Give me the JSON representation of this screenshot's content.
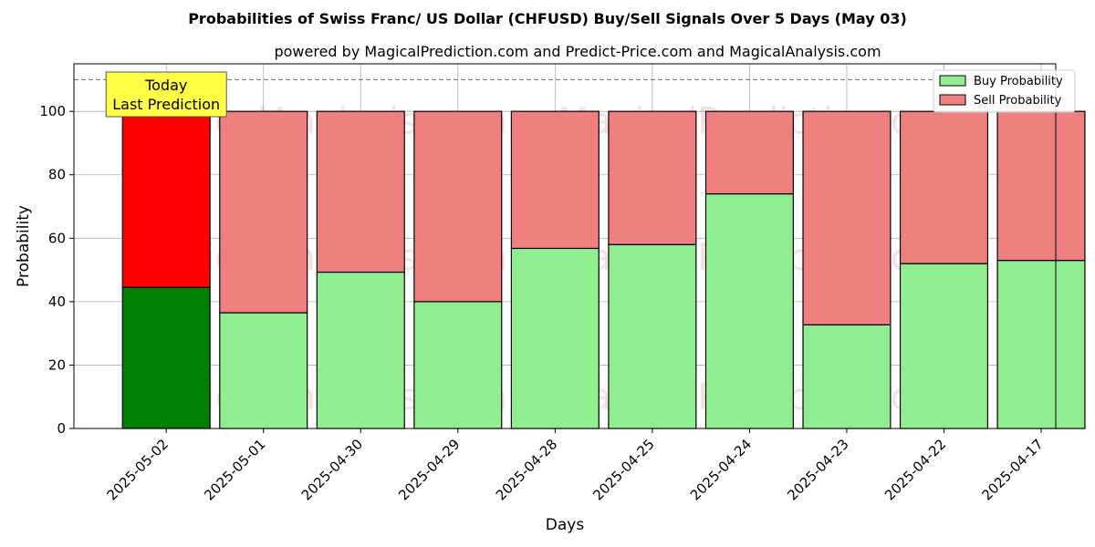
{
  "chart_data": {
    "type": "bar",
    "stacked": true,
    "title": "Probabilities of Swiss Franc/ US Dollar (CHFUSD) Buy/Sell Signals Over 5 Days (May 03)",
    "subtitle": "powered by MagicalPrediction.com and Predict-Price.com and MagicalAnalysis.com",
    "xlabel": "Days",
    "ylabel": "Probability",
    "ylim": [
      0,
      115
    ],
    "yticks": [
      0,
      20,
      40,
      60,
      80,
      100
    ],
    "reference_line": 110,
    "grid": true,
    "legend_position": "top-right",
    "categories": [
      "2025-05-02",
      "2025-05-01",
      "2025-04-30",
      "2025-04-29",
      "2025-04-28",
      "2025-04-25",
      "2025-04-24",
      "2025-04-23",
      "2025-04-22",
      "2025-04-17"
    ],
    "series": [
      {
        "name": "Buy Probability",
        "color": "#90ee90",
        "highlight_color": "#008000",
        "values": [
          44.5,
          36.5,
          49.3,
          40.0,
          56.8,
          58.0,
          74.0,
          32.7,
          52.0,
          53.0
        ]
      },
      {
        "name": "Sell Probability",
        "color": "#f08080",
        "highlight_color": "#ff0000",
        "values": [
          55.5,
          63.5,
          50.7,
          60.0,
          43.2,
          42.0,
          26.0,
          67.3,
          48.0,
          47.0
        ]
      }
    ],
    "highlight_index": 0,
    "annotation": {
      "lines": [
        "Today",
        "Last Prediction"
      ],
      "color": "#ffff44"
    },
    "watermarks": [
      "MagicalAnalysis.com",
      "MagicalPrediction.com"
    ]
  }
}
